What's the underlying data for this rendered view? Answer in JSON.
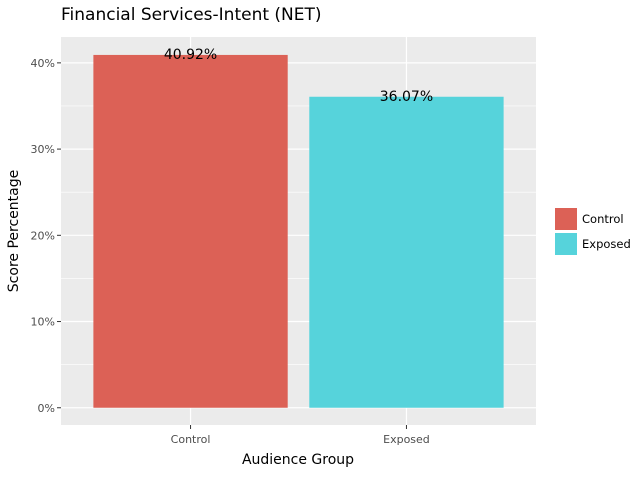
{
  "chart_data": {
    "type": "bar",
    "title": "Financial Services-Intent (NET)",
    "xlabel": "Audience Group",
    "ylabel": "Score Percentage",
    "categories": [
      "Control",
      "Exposed"
    ],
    "values": [
      40.92,
      36.07
    ],
    "data_labels": [
      "40.92%",
      "36.07%"
    ],
    "colors": [
      "#dc6156",
      "#56d3db"
    ],
    "ylim": [
      -2.0,
      43.0
    ],
    "yticks": [
      0,
      10,
      20,
      30,
      40
    ],
    "ytick_labels": [
      "0%",
      "10%",
      "20%",
      "30%",
      "40%"
    ],
    "grid": true,
    "panel_background": "#ebebeb",
    "legend": {
      "position": "right",
      "entries": [
        {
          "label": "Control",
          "color": "#dc6156"
        },
        {
          "label": "Exposed",
          "color": "#56d3db"
        }
      ]
    }
  }
}
